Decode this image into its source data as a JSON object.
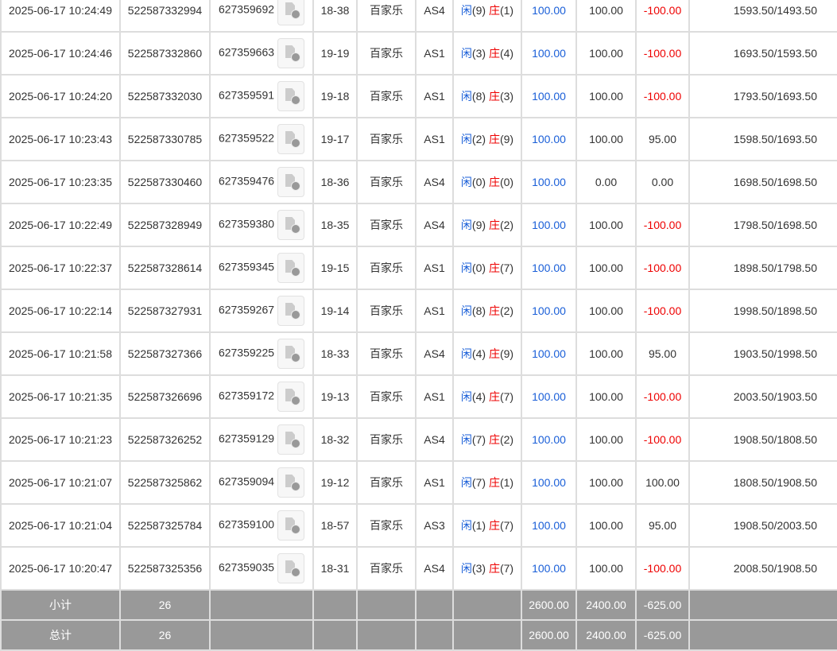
{
  "rows": [
    [
      "2025-06-17 10:24:49",
      "522587332994",
      "627359692",
      "18-38",
      "百家乐",
      "AS4",
      "9",
      "1",
      "100.00",
      "100.00",
      "-100.00",
      "1593.50/1493.50"
    ],
    [
      "2025-06-17 10:24:46",
      "522587332860",
      "627359663",
      "19-19",
      "百家乐",
      "AS1",
      "3",
      "4",
      "100.00",
      "100.00",
      "-100.00",
      "1693.50/1593.50"
    ],
    [
      "2025-06-17 10:24:20",
      "522587332030",
      "627359591",
      "19-18",
      "百家乐",
      "AS1",
      "8",
      "3",
      "100.00",
      "100.00",
      "-100.00",
      "1793.50/1693.50"
    ],
    [
      "2025-06-17 10:23:43",
      "522587330785",
      "627359522",
      "19-17",
      "百家乐",
      "AS1",
      "2",
      "9",
      "100.00",
      "100.00",
      "95.00",
      "1598.50/1693.50"
    ],
    [
      "2025-06-17 10:23:35",
      "522587330460",
      "627359476",
      "18-36",
      "百家乐",
      "AS4",
      "0",
      "0",
      "100.00",
      "0.00",
      "0.00",
      "1698.50/1698.50"
    ],
    [
      "2025-06-17 10:22:49",
      "522587328949",
      "627359380",
      "18-35",
      "百家乐",
      "AS4",
      "9",
      "2",
      "100.00",
      "100.00",
      "-100.00",
      "1798.50/1698.50"
    ],
    [
      "2025-06-17 10:22:37",
      "522587328614",
      "627359345",
      "19-15",
      "百家乐",
      "AS1",
      "0",
      "7",
      "100.00",
      "100.00",
      "-100.00",
      "1898.50/1798.50"
    ],
    [
      "2025-06-17 10:22:14",
      "522587327931",
      "627359267",
      "19-14",
      "百家乐",
      "AS1",
      "8",
      "2",
      "100.00",
      "100.00",
      "-100.00",
      "1998.50/1898.50"
    ],
    [
      "2025-06-17 10:21:58",
      "522587327366",
      "627359225",
      "18-33",
      "百家乐",
      "AS4",
      "4",
      "9",
      "100.00",
      "100.00",
      "95.00",
      "1903.50/1998.50"
    ],
    [
      "2025-06-17 10:21:35",
      "522587326696",
      "627359172",
      "19-13",
      "百家乐",
      "AS1",
      "4",
      "7",
      "100.00",
      "100.00",
      "-100.00",
      "2003.50/1903.50"
    ],
    [
      "2025-06-17 10:21:23",
      "522587326252",
      "627359129",
      "18-32",
      "百家乐",
      "AS4",
      "7",
      "2",
      "100.00",
      "100.00",
      "-100.00",
      "1908.50/1808.50"
    ],
    [
      "2025-06-17 10:21:07",
      "522587325862",
      "627359094",
      "19-12",
      "百家乐",
      "AS1",
      "7",
      "1",
      "100.00",
      "100.00",
      "100.00",
      "1808.50/1908.50"
    ],
    [
      "2025-06-17 10:21:04",
      "522587325784",
      "627359100",
      "18-57",
      "百家乐",
      "AS3",
      "1",
      "7",
      "100.00",
      "100.00",
      "95.00",
      "1908.50/2003.50"
    ],
    [
      "2025-06-17 10:20:47",
      "522587325356",
      "627359035",
      "18-31",
      "百家乐",
      "AS4",
      "3",
      "7",
      "100.00",
      "100.00",
      "-100.00",
      "2008.50/1908.50"
    ]
  ],
  "player_label": "闲",
  "banker_label": "庄",
  "footer": [
    {
      "label": "小计",
      "count": "26",
      "bet": "2600.00",
      "valid": "2400.00",
      "win": "-625.00"
    },
    {
      "label": "总计",
      "count": "26",
      "bet": "2600.00",
      "valid": "2400.00",
      "win": "-625.00"
    }
  ],
  "colors": {
    "blue": "#1a5fd8",
    "red": "#e00",
    "footer_bg": "#999"
  }
}
